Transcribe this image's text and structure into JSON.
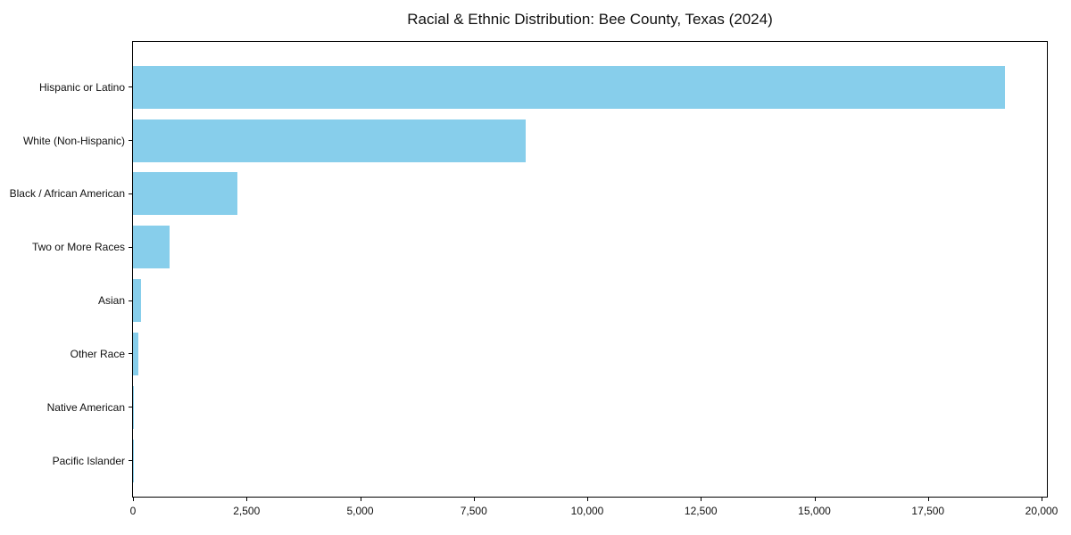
{
  "chart_data": {
    "type": "bar",
    "orientation": "horizontal",
    "title": "Racial & Ethnic Distribution: Bee County, Texas (2024)",
    "categories": [
      "Hispanic or Latino",
      "White (Non-Hispanic)",
      "Black / African American",
      "Two or More Races",
      "Asian",
      "Other Race",
      "Native American",
      "Pacific Islander"
    ],
    "values": [
      19200,
      8640,
      2300,
      800,
      185,
      110,
      15,
      5
    ],
    "bar_color": "#87CEEB",
    "xlabel": "",
    "ylabel": "",
    "xlim": [
      0,
      20160
    ],
    "xticks": [
      0,
      2500,
      5000,
      7500,
      10000,
      12500,
      15000,
      17500,
      20000
    ],
    "xtick_labels": [
      "0",
      "2,500",
      "5,000",
      "7,500",
      "10,000",
      "12,500",
      "15,000",
      "17,500",
      "20,000"
    ],
    "grid": false,
    "legend": "none",
    "text_color": "#111111",
    "spine_color": "#000000",
    "background_color": "#ffffff"
  }
}
